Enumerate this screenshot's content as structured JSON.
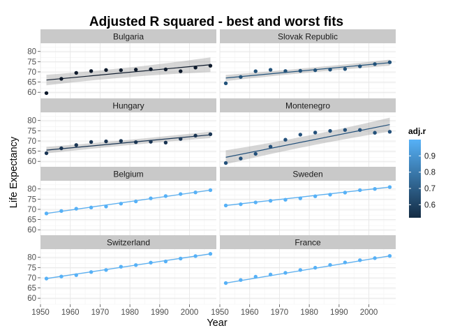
{
  "chart_data": {
    "type": "scatter",
    "title": "Adjusted R squared - best and worst fits",
    "xlabel": "Year",
    "ylabel": "Life Expectancy",
    "xlim": [
      1950,
      2009
    ],
    "ylim": [
      57,
      84
    ],
    "x_ticks": [
      1950,
      1960,
      1970,
      1980,
      1990,
      2000
    ],
    "y_ticks": [
      60,
      65,
      70,
      75,
      80
    ],
    "years": [
      1952,
      1957,
      1962,
      1967,
      1972,
      1977,
      1982,
      1987,
      1992,
      1997,
      2002,
      2007
    ],
    "facet_layout": {
      "ncol": 2,
      "nrow": 4
    },
    "legend": {
      "title": "adj.r",
      "position": "right",
      "range": [
        0.52,
        1.0
      ],
      "ticks": [
        "0.6",
        "0.7",
        "0.8",
        "0.9"
      ],
      "low_color": "#132B43",
      "high_color": "#56B1F7"
    },
    "panels": [
      {
        "name": "Bulgaria",
        "adj_r": 0.6,
        "point_color": "#0e1a2b",
        "values": [
          59.6,
          66.6,
          69.5,
          70.4,
          70.9,
          70.8,
          71.1,
          71.3,
          71.2,
          70.3,
          72.1,
          73.0
        ],
        "fit": [
          66.0,
          73.5
        ],
        "band_width": [
          2.6,
          1.6,
          3.6
        ]
      },
      {
        "name": "Slovak Republic",
        "adj_r": 0.66,
        "point_color": "#22527a",
        "values": [
          64.4,
          67.5,
          70.3,
          71.0,
          70.4,
          70.5,
          70.8,
          71.1,
          71.4,
          72.7,
          73.8,
          74.7
        ],
        "fit": [
          67.0,
          74.5
        ],
        "band_width": [
          1.5,
          0.8,
          1.5
        ]
      },
      {
        "name": "Hungary",
        "adj_r": 0.67,
        "point_color": "#1a3553",
        "values": [
          64.0,
          66.4,
          68.0,
          69.5,
          69.8,
          70.0,
          69.4,
          69.6,
          69.2,
          71.0,
          72.6,
          73.3
        ],
        "fit": [
          65.5,
          73.0
        ],
        "band_width": [
          1.6,
          1.0,
          1.6
        ]
      },
      {
        "name": "Montenegro",
        "adj_r": 0.68,
        "point_color": "#23507a",
        "values": [
          59.2,
          61.4,
          63.7,
          67.2,
          70.6,
          73.1,
          74.1,
          74.9,
          75.4,
          75.4,
          74.0,
          74.5
        ],
        "fit": [
          62.0,
          78.0
        ],
        "band_width": [
          3.4,
          1.8,
          3.4
        ]
      },
      {
        "name": "Belgium",
        "adj_r": 0.99,
        "point_color": "#56B1F7",
        "values": [
          68.0,
          69.2,
          70.3,
          70.9,
          71.4,
          72.8,
          73.9,
          75.4,
          76.5,
          77.5,
          78.3,
          79.4
        ],
        "fit": [
          68.0,
          79.4
        ],
        "band_width": [
          0.3,
          0.2,
          0.3
        ]
      },
      {
        "name": "Sweden",
        "adj_r": 0.99,
        "point_color": "#56B1F7",
        "values": [
          71.9,
          72.5,
          73.4,
          74.2,
          74.7,
          75.4,
          76.4,
          77.2,
          78.2,
          79.4,
          80.0,
          80.9
        ],
        "fit": [
          71.9,
          80.9
        ],
        "band_width": [
          0.3,
          0.2,
          0.3
        ]
      },
      {
        "name": "Switzerland",
        "adj_r": 0.99,
        "point_color": "#56B1F7",
        "values": [
          69.6,
          70.6,
          71.3,
          72.8,
          73.8,
          75.4,
          76.2,
          77.4,
          78.0,
          79.4,
          80.6,
          81.7
        ],
        "fit": [
          69.6,
          81.7
        ],
        "band_width": [
          0.3,
          0.2,
          0.3
        ]
      },
      {
        "name": "France",
        "adj_r": 0.99,
        "point_color": "#56B1F7",
        "values": [
          67.4,
          68.9,
          70.5,
          71.6,
          72.4,
          73.8,
          74.9,
          76.3,
          77.5,
          78.6,
          79.6,
          80.7
        ],
        "fit": [
          67.4,
          80.7
        ],
        "band_width": [
          0.3,
          0.2,
          0.3
        ]
      }
    ]
  }
}
